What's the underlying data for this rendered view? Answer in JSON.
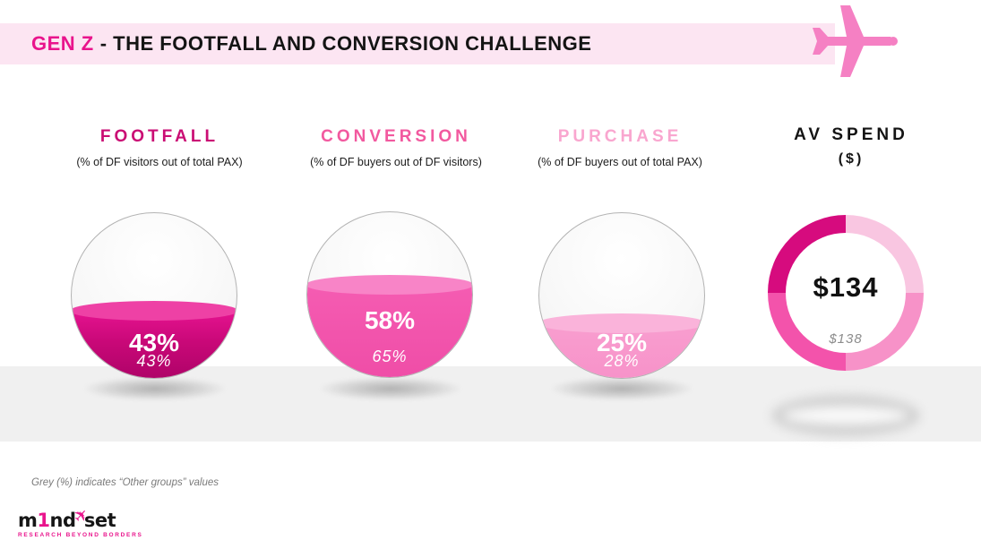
{
  "header": {
    "title_accent": "GEN Z",
    "title_rest": "- THE FOOTFALL AND CONVERSION CHALLENGE"
  },
  "columns": [
    {
      "label": "FOOTFALL",
      "sublabel": "(% of DF visitors out of total PAX)",
      "value": "43%",
      "other_value": "43%"
    },
    {
      "label": "CONVERSION",
      "sublabel": "(% of DF buyers out of DF visitors)",
      "value": "58%",
      "other_value": "65%"
    },
    {
      "label": "PURCHASE",
      "sublabel": "(% of DF buyers out of total PAX)",
      "value": "25%",
      "other_value": "28%"
    },
    {
      "label": "AV SPEND",
      "sublabel": "($)",
      "value": "$134",
      "other_value": "$138"
    }
  ],
  "footnote": "Grey (%) indicates “Other groups” values",
  "logo": {
    "m": "m",
    "one": "1",
    "nd": "nd",
    "set": "set",
    "tagline": "RESEARCH BEYOND BORDERS"
  },
  "colors": {
    "header_bar": "#fce5f2",
    "accent_pink": "#e9148c",
    "footfall_fill": "#c90878",
    "conversion_fill": "#f150aa",
    "purchase_fill": "#f79ccd",
    "plane_pink": "#f580c3",
    "floor_gray": "#f0f0f0"
  },
  "layout": {
    "fill_levels": [
      42,
      57,
      34
    ],
    "donut_segment_colors": [
      "#f9c6e1",
      "#f792c8",
      "#f353ab",
      "#d60b7e"
    ]
  },
  "chart_data": [
    {
      "type": "area",
      "subtype": "liquid-fill-gauge",
      "title": "FOOTFALL",
      "subtitle": "(% of DF visitors out of total PAX)",
      "unit": "%",
      "series": [
        {
          "name": "Gen Z",
          "value": 43
        },
        {
          "name": "Other groups",
          "value": 43
        }
      ],
      "fill_color": "#c90878"
    },
    {
      "type": "area",
      "subtype": "liquid-fill-gauge",
      "title": "CONVERSION",
      "subtitle": "(% of DF buyers out of DF visitors)",
      "unit": "%",
      "series": [
        {
          "name": "Gen Z",
          "value": 58
        },
        {
          "name": "Other groups",
          "value": 65
        }
      ],
      "fill_color": "#f150aa"
    },
    {
      "type": "area",
      "subtype": "liquid-fill-gauge",
      "title": "PURCHASE",
      "subtitle": "(% of DF buyers out of total PAX)",
      "unit": "%",
      "series": [
        {
          "name": "Gen Z",
          "value": 25
        },
        {
          "name": "Other groups",
          "value": 28
        }
      ],
      "fill_color": "#f79ccd"
    },
    {
      "type": "pie",
      "subtype": "donut",
      "title": "AV SPEND ($)",
      "unit": "$",
      "series": [
        {
          "name": "Gen Z",
          "value": 134
        },
        {
          "name": "Other groups",
          "value": 138
        }
      ],
      "segment_fractions": [
        0.25,
        0.25,
        0.25,
        0.25
      ],
      "segment_colors": [
        "#f9c6e1",
        "#f792c8",
        "#f353ab",
        "#d60b7e"
      ],
      "legend": "none"
    }
  ]
}
